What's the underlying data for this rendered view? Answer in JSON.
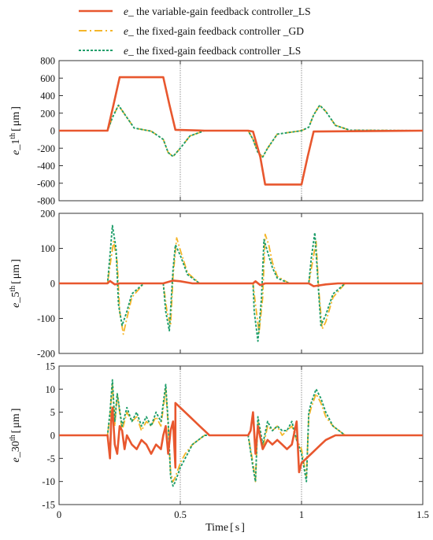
{
  "colors": {
    "variable_ls": "#e8572e",
    "fixed_gd": "#f5b62a",
    "fixed_ls": "#1e9e6a",
    "axis": "#333333",
    "vline": "#777777"
  },
  "legend": [
    {
      "italic": "e",
      "text": "_ the variable-gain feedback controller_LS",
      "color": "#e8572e",
      "dash": "solid"
    },
    {
      "italic": "e",
      "text": "_ the fixed-gain feedback controller _GD",
      "color": "#f5b62a",
      "dash": "dashdot"
    },
    {
      "italic": "e",
      "text": "_ the fixed-gain feedback controller _LS",
      "color": "#1e9e6a",
      "dash": "dotted"
    }
  ],
  "xaxis": {
    "label": "Time",
    "unit": "s",
    "ticks": [
      "0",
      "0.5",
      "1",
      "1.5"
    ],
    "tick_values": [
      0,
      0.5,
      1,
      1.5
    ]
  },
  "chart_data": [
    {
      "type": "line",
      "ylabel_italic": "e",
      "ylabel_main": "_1",
      "ylabel_sup": "th",
      "ylabel_unit": "μm",
      "xlim": [
        0,
        1.5
      ],
      "ylim": [
        -800,
        800
      ],
      "yticks": [
        800,
        600,
        400,
        200,
        0,
        -200,
        -400,
        -600,
        -800
      ],
      "vlines": [
        0.5,
        1.0
      ],
      "series": [
        {
          "key": "variable_ls",
          "x": [
            0,
            0.2,
            0.225,
            0.25,
            0.43,
            0.455,
            0.48,
            0.6,
            0.78,
            0.8,
            0.83,
            0.85,
            0.85,
            0.98,
            1.0,
            1.025,
            1.05,
            1.5
          ],
          "y": [
            0,
            0,
            300,
            610,
            610,
            300,
            10,
            0,
            0,
            -10,
            -300,
            -615,
            -615,
            -615,
            -615,
            -300,
            -10,
            0
          ]
        },
        {
          "key": "fixed_gd",
          "x": [
            0,
            0.2,
            0.22,
            0.245,
            0.27,
            0.31,
            0.38,
            0.43,
            0.45,
            0.47,
            0.5,
            0.54,
            0.6,
            0.78,
            0.8,
            0.82,
            0.84,
            0.86,
            0.9,
            1.0,
            1.03,
            1.05,
            1.075,
            1.1,
            1.14,
            1.2,
            1.5
          ],
          "y": [
            0,
            0,
            150,
            290,
            190,
            30,
            -5,
            -100,
            -250,
            -295,
            -200,
            -60,
            0,
            0,
            -100,
            -250,
            -300,
            -200,
            -40,
            0,
            40,
            180,
            290,
            220,
            60,
            5,
            0
          ]
        },
        {
          "key": "fixed_ls",
          "x": [
            0,
            0.2,
            0.22,
            0.245,
            0.27,
            0.31,
            0.38,
            0.43,
            0.45,
            0.47,
            0.5,
            0.54,
            0.6,
            0.78,
            0.8,
            0.82,
            0.84,
            0.86,
            0.9,
            1.0,
            1.03,
            1.05,
            1.075,
            1.1,
            1.14,
            1.2,
            1.5
          ],
          "y": [
            0,
            0,
            150,
            290,
            190,
            30,
            -5,
            -100,
            -250,
            -295,
            -200,
            -60,
            0,
            0,
            -100,
            -250,
            -300,
            -200,
            -40,
            0,
            40,
            180,
            290,
            220,
            60,
            5,
            0
          ]
        }
      ]
    },
    {
      "type": "line",
      "ylabel_italic": "e",
      "ylabel_main": "_5",
      "ylabel_sup": "th",
      "ylabel_unit": "μm",
      "xlim": [
        0,
        1.5
      ],
      "ylim": [
        -200,
        200
      ],
      "yticks": [
        200,
        100,
        0,
        -100,
        -200
      ],
      "vlines": [],
      "series": [
        {
          "key": "variable_ls",
          "x": [
            0,
            0.2,
            0.21,
            0.23,
            0.25,
            0.43,
            0.47,
            0.5,
            0.55,
            0.8,
            0.81,
            0.83,
            0.85,
            1.03,
            1.05,
            1.1,
            1.15,
            1.5
          ],
          "y": [
            0,
            0,
            7,
            -3,
            0,
            0,
            8,
            6,
            0,
            0,
            6,
            -5,
            0,
            0,
            -8,
            -3,
            0,
            0
          ]
        },
        {
          "key": "fixed_gd",
          "x": [
            0,
            0.2,
            0.21,
            0.225,
            0.24,
            0.25,
            0.265,
            0.28,
            0.3,
            0.35,
            0.43,
            0.445,
            0.46,
            0.47,
            0.485,
            0.5,
            0.53,
            0.58,
            0.8,
            0.81,
            0.825,
            0.84,
            0.85,
            0.865,
            0.88,
            0.9,
            0.95,
            1.03,
            1.045,
            1.06,
            1.07,
            1.085,
            1.1,
            1.13,
            1.18,
            1.5
          ],
          "y": [
            0,
            0,
            50,
            120,
            60,
            -80,
            -145,
            -100,
            -40,
            0,
            0,
            -80,
            -120,
            20,
            130,
            95,
            30,
            0,
            0,
            -60,
            -140,
            -40,
            140,
            110,
            60,
            20,
            0,
            0,
            60,
            120,
            -10,
            -130,
            -110,
            -40,
            0,
            0
          ]
        },
        {
          "key": "fixed_ls",
          "x": [
            0,
            0.2,
            0.21,
            0.22,
            0.235,
            0.245,
            0.26,
            0.28,
            0.3,
            0.35,
            0.43,
            0.44,
            0.455,
            0.47,
            0.48,
            0.5,
            0.53,
            0.58,
            0.8,
            0.805,
            0.82,
            0.835,
            0.845,
            0.86,
            0.88,
            0.9,
            0.95,
            1.03,
            1.04,
            1.055,
            1.07,
            1.08,
            1.1,
            1.13,
            1.18,
            1.5
          ],
          "y": [
            0,
            0,
            80,
            165,
            100,
            -60,
            -120,
            -80,
            -30,
            0,
            0,
            -80,
            -135,
            40,
            110,
            80,
            25,
            0,
            0,
            -80,
            -165,
            -40,
            125,
            90,
            45,
            15,
            0,
            0,
            70,
            145,
            -20,
            -120,
            -90,
            -30,
            0,
            0
          ]
        }
      ]
    },
    {
      "type": "line",
      "ylabel_italic": "e",
      "ylabel_main": "_30",
      "ylabel_sup": "th",
      "ylabel_unit": "μm",
      "xlim": [
        0,
        1.5
      ],
      "ylim": [
        -15,
        15
      ],
      "yticks": [
        15,
        10,
        5,
        0,
        -5,
        -10,
        -15
      ],
      "vlines": [
        0.5,
        1.0
      ],
      "series": [
        {
          "key": "variable_ls",
          "x": [
            0,
            0.2,
            0.21,
            0.215,
            0.22,
            0.23,
            0.24,
            0.25,
            0.26,
            0.27,
            0.28,
            0.3,
            0.32,
            0.34,
            0.36,
            0.38,
            0.4,
            0.42,
            0.43,
            0.44,
            0.45,
            0.46,
            0.47,
            0.48,
            0.48,
            0.5,
            0.52,
            0.54,
            0.56,
            0.58,
            0.6,
            0.62,
            0.78,
            0.79,
            0.8,
            0.81,
            0.82,
            0.84,
            0.86,
            0.88,
            0.9,
            0.92,
            0.94,
            0.96,
            0.98,
            0.99,
            1.0,
            1.02,
            1.04,
            1.06,
            1.08,
            1.1,
            1.12,
            1.14,
            1.16,
            1.18,
            1.2,
            1.5
          ],
          "y": [
            0,
            0,
            -5,
            3,
            6,
            -2,
            -4,
            2,
            1,
            -3,
            0,
            -2,
            -3,
            -1,
            -2,
            -4,
            -2,
            -3,
            0,
            2,
            -4,
            1,
            3,
            -7,
            7,
            6,
            5,
            4,
            3,
            2,
            1,
            0,
            0,
            1,
            5,
            -4,
            2,
            -3,
            -1,
            -2,
            -1,
            -2,
            -3,
            -2,
            3,
            -8,
            -6,
            -5,
            -4,
            -3,
            -2,
            -1,
            -0.5,
            0,
            0,
            0,
            0,
            0
          ]
        },
        {
          "key": "fixed_gd",
          "x": [
            0,
            0.2,
            0.21,
            0.22,
            0.23,
            0.24,
            0.26,
            0.28,
            0.3,
            0.32,
            0.34,
            0.36,
            0.38,
            0.4,
            0.42,
            0.44,
            0.45,
            0.46,
            0.47,
            0.48,
            0.5,
            0.52,
            0.55,
            0.6,
            0.78,
            0.8,
            0.81,
            0.82,
            0.84,
            0.86,
            0.88,
            0.9,
            0.92,
            0.94,
            0.96,
            0.98,
            1.0,
            1.02,
            1.03,
            1.04,
            1.06,
            1.08,
            1.1,
            1.13,
            1.18,
            1.5
          ],
          "y": [
            0,
            0,
            4,
            11,
            2,
            9,
            1,
            5,
            3,
            4,
            1,
            3,
            2,
            4,
            2,
            10,
            2,
            -8,
            -10,
            -9,
            -6,
            -4,
            -2,
            0,
            0,
            -6,
            -10,
            3,
            -3,
            2,
            1,
            2,
            0,
            1,
            2,
            -1,
            -3,
            -9,
            4,
            6,
            9,
            7,
            4,
            2,
            0,
            0
          ]
        },
        {
          "key": "fixed_ls",
          "x": [
            0,
            0.2,
            0.21,
            0.22,
            0.23,
            0.24,
            0.26,
            0.28,
            0.3,
            0.32,
            0.34,
            0.36,
            0.38,
            0.4,
            0.42,
            0.44,
            0.45,
            0.46,
            0.47,
            0.48,
            0.5,
            0.52,
            0.55,
            0.6,
            0.78,
            0.8,
            0.81,
            0.82,
            0.84,
            0.86,
            0.88,
            0.9,
            0.92,
            0.94,
            0.96,
            0.98,
            1.0,
            1.02,
            1.03,
            1.04,
            1.06,
            1.08,
            1.1,
            1.13,
            1.18,
            1.5
          ],
          "y": [
            0,
            0,
            5,
            12,
            3,
            9,
            2,
            6,
            3,
            5,
            2,
            4,
            2,
            5,
            3,
            11,
            3,
            -9,
            -11,
            -10,
            -7,
            -5,
            -2,
            0,
            0,
            -7,
            -10,
            4,
            -2,
            3,
            1,
            2,
            1,
            1,
            3,
            -1,
            -4,
            -10,
            5,
            7,
            10,
            8,
            5,
            2,
            0,
            0
          ]
        }
      ]
    }
  ]
}
